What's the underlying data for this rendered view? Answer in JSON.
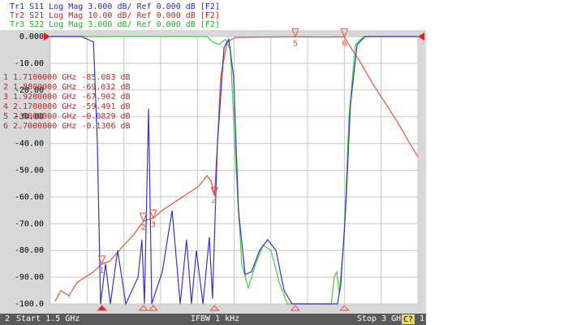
{
  "header": {
    "lines": [
      {
        "text": "Tr1 S11 Log Mag 3.000 dB/ Ref 0.000 dB [F2]",
        "color": "#2828c8"
      },
      {
        "text": "Tr2 S21 Log Mag 10.00 dB/ Ref 0.000 dB [F2]",
        "color": "#d02020"
      },
      {
        "text": "Tr3 S22 Log Mag 3.000 dB/ Ref 0.000 dB [F2]",
        "color": "#20b020"
      }
    ]
  },
  "marker_table": {
    "rows": [
      "1  1.7100000 GHz -85.083 dB",
      "2  1.8800000 GHz -69.032 dB",
      "3  1.9200000 GHz -67.902 dB",
      "4  2.1700000 GHz -59.491 dB",
      "5  2.5000000 GHz -0.0829 dB",
      "6  2.7000000 GHz -0.1306 dB"
    ]
  },
  "status_bar": {
    "channel": "2",
    "start": "Start 1.5 GHz",
    "ifbw": "IFBW 1 kHz",
    "stop": "Stop 3 GHz",
    "cal": "C?",
    "index": "1"
  },
  "chart_data": {
    "type": "line",
    "xlim": [
      1.5,
      3.0
    ],
    "xticks": [
      1.5,
      1.65,
      1.8,
      1.95,
      2.1,
      2.25,
      2.4,
      2.55,
      2.7,
      2.85,
      3.0
    ],
    "ylim": [
      -100,
      0
    ],
    "yticks": [
      {
        "value": 0,
        "label": "0.000"
      },
      {
        "value": -10,
        "label": "-10.00"
      },
      {
        "value": -20,
        "label": "-20.00"
      },
      {
        "value": -30,
        "label": "-30.00"
      },
      {
        "value": -40,
        "label": "-40.00"
      },
      {
        "value": -50,
        "label": "-50.00"
      },
      {
        "value": -60,
        "label": "-60.00"
      },
      {
        "value": -70,
        "label": "-70.00"
      },
      {
        "value": -80,
        "label": "-80.00"
      },
      {
        "value": -90,
        "label": "-90.00"
      },
      {
        "value": -100,
        "label": "-100.0"
      }
    ],
    "grid": true,
    "series": [
      {
        "name": "S11",
        "color": "#3434c8",
        "x": [
          1.5,
          1.626,
          1.676,
          1.692,
          1.705,
          1.725,
          1.745,
          1.775,
          1.808,
          1.858,
          1.874,
          1.884,
          1.901,
          1.914,
          1.957,
          1.997,
          2.03,
          2.056,
          2.076,
          2.096,
          2.123,
          2.149,
          2.162,
          2.182,
          2.209,
          2.228,
          2.248,
          2.268,
          2.295,
          2.321,
          2.354,
          2.387,
          2.421,
          2.454,
          2.487,
          2.619,
          2.672,
          2.685,
          2.705,
          2.725,
          2.752,
          2.785,
          3.0
        ],
        "values": [
          0,
          0,
          -2,
          -40,
          -100,
          -85,
          -100,
          -80,
          -100,
          -90,
          -76,
          -100,
          -27,
          -100,
          -88,
          -65,
          -100,
          -76,
          -100,
          -80,
          -100,
          -75,
          -98,
          -40,
          -4,
          -1,
          -15,
          -65,
          -89,
          -88,
          -80,
          -76,
          -80,
          -95,
          -100,
          -100,
          -100,
          -93,
          -65,
          -25,
          -3,
          0,
          0
        ]
      },
      {
        "name": "S21",
        "color": "#e8503c",
        "x": [
          1.52,
          1.543,
          1.576,
          1.609,
          1.642,
          1.676,
          1.71,
          1.742,
          1.791,
          1.841,
          1.88,
          1.92,
          1.957,
          2.007,
          2.056,
          2.106,
          2.139,
          2.156,
          2.17,
          2.182,
          2.195,
          2.222,
          2.255,
          2.5,
          2.619,
          2.7,
          2.719,
          2.768,
          2.818,
          2.868,
          2.917,
          2.967,
          3.0
        ],
        "values": [
          -99,
          -95,
          -97,
          -92,
          -90,
          -88,
          -85.083,
          -84,
          -79,
          -74,
          -69.032,
          -67.902,
          -65,
          -62,
          -59,
          -56,
          -52,
          -54,
          -59.491,
          -40,
          -15,
          -2,
          -0.3,
          -0.0829,
          -0.2,
          -0.1306,
          -3,
          -10,
          -18,
          -25,
          -32,
          -40,
          -45
        ]
      },
      {
        "name": "S22",
        "color": "#40d040",
        "x": [
          1.5,
          2.139,
          2.162,
          2.189,
          2.215,
          2.235,
          2.255,
          2.281,
          2.308,
          2.334,
          2.368,
          2.401,
          2.434,
          2.467,
          2.646,
          2.659,
          2.669,
          2.679,
          2.699,
          2.719,
          2.745,
          2.778,
          3.0
        ],
        "values": [
          0,
          0,
          -2,
          -3,
          -1,
          -5,
          -45,
          -85,
          -94,
          -86,
          -78,
          -80,
          -92,
          -100,
          -100,
          -90,
          -88,
          -96,
          -75,
          -30,
          -3,
          0,
          0
        ]
      }
    ],
    "markers": [
      {
        "label": "1",
        "x": 1.71,
        "value": -85.083
      },
      {
        "label": "2",
        "x": 1.88,
        "value": -69.032
      },
      {
        "label": "3",
        "x": 1.92,
        "value": -67.902
      },
      {
        "label": "4",
        "x": 2.17,
        "value": -59.491
      },
      {
        "label": "5",
        "x": 2.5,
        "value": -0.0829
      },
      {
        "label": "6",
        "x": 2.7,
        "value": -0.1306
      }
    ]
  }
}
